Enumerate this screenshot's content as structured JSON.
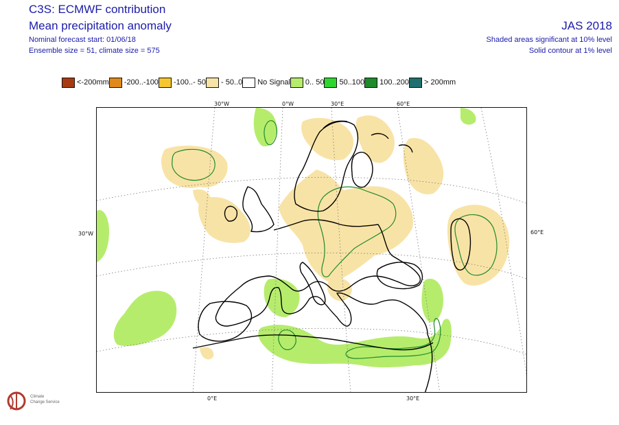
{
  "header": {
    "title": "C3S: ECMWF contribution",
    "subtitle": "Mean precipitation anomaly",
    "forecast_start": "Nominal forecast start: 01/06/18",
    "ensemble": "Ensemble size = 51, climate size = 575",
    "season": "JAS 2018",
    "note_shaded": "Shaded areas significant at 10% level",
    "note_contour": "Solid contour at 1% level"
  },
  "legend": [
    {
      "label": "<-200mm",
      "color": "#a83a12"
    },
    {
      "label": "-200..-100",
      "color": "#e08a1a"
    },
    {
      "label": "-100..- 50",
      "color": "#f5c630"
    },
    {
      "label": "- 50..0",
      "color": "#f8e3a6"
    },
    {
      "label": "No Signal",
      "color": "#ffffff"
    },
    {
      "label": "0.. 50",
      "color": "#b6ec6c"
    },
    {
      "label": "50..100",
      "color": "#2fd52f"
    },
    {
      "label": "100..200",
      "color": "#1e8a2a"
    },
    {
      "label": "> 200mm",
      "color": "#1f6f6f"
    }
  ],
  "map": {
    "top_labels": [
      "30°W",
      "0°W",
      "30°E",
      "60°E"
    ],
    "left_label": "30°W",
    "right_label": "60°E",
    "bottom_labels": [
      "0°E",
      "30°E"
    ],
    "colors": {
      "dry": "#f8e3a6",
      "wet": "#b6ec6c",
      "contour": "#1e8a2a",
      "coast": "#000000",
      "grid": "#777777"
    }
  },
  "logo": {
    "line1": "Climate",
    "line2": "Change Service"
  }
}
